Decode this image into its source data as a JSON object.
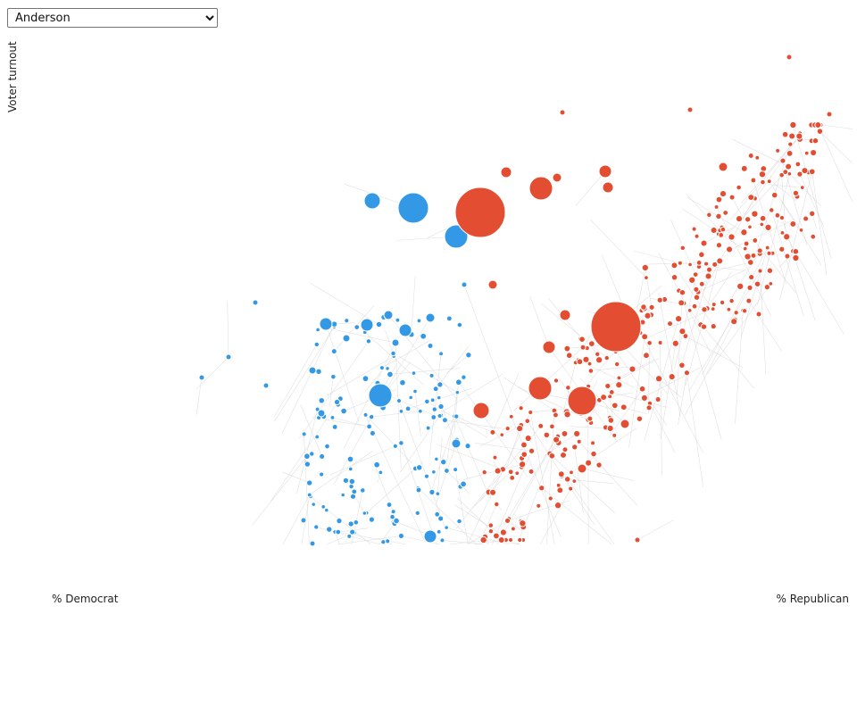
{
  "controls": {
    "county_options": [
      "Anderson"
    ],
    "selected_county": "Anderson"
  },
  "colors": {
    "democrat": "#3399e6",
    "republican": "#e34e33",
    "link": "#d4d4d4"
  },
  "chart_data": {
    "type": "scatter",
    "title": "",
    "xlabel_left": "% Democrat",
    "xlabel_right": "% Republican",
    "ylabel": "Voter turnout",
    "grid": false,
    "legend": "none",
    "points": [
      [
        538,
        238,
        28,
        "R"
      ],
      [
        690,
        366,
        28,
        "R"
      ],
      [
        463,
        233,
        17,
        "B"
      ],
      [
        652,
        449,
        16,
        "R"
      ],
      [
        511,
        265,
        13,
        "B"
      ],
      [
        426,
        443,
        13,
        "B"
      ],
      [
        606,
        211,
        13,
        "R"
      ],
      [
        605,
        435,
        13,
        "R"
      ],
      [
        417,
        225,
        9,
        "B"
      ],
      [
        539,
        460,
        9,
        "R"
      ],
      [
        678,
        192,
        7,
        "R"
      ],
      [
        567,
        193,
        6,
        "R"
      ],
      [
        681,
        210,
        6,
        "R"
      ],
      [
        615,
        389,
        7,
        "R"
      ],
      [
        633,
        353,
        6,
        "R"
      ],
      [
        454,
        370,
        7,
        "B"
      ],
      [
        411,
        364,
        7,
        "B"
      ],
      [
        365,
        363,
        7,
        "B"
      ],
      [
        482,
        601,
        7,
        "B"
      ],
      [
        624,
        199,
        5,
        "R"
      ],
      [
        810,
        187,
        5,
        "R"
      ],
      [
        552,
        319,
        5,
        "R"
      ],
      [
        700,
        475,
        5,
        "R"
      ],
      [
        652,
        525,
        5,
        "R"
      ],
      [
        511,
        497,
        5,
        "B"
      ],
      [
        435,
        353,
        5,
        "B"
      ],
      [
        482,
        356,
        5,
        "B"
      ],
      [
        360,
        463,
        4,
        "B"
      ],
      [
        388,
        379,
        4,
        "B"
      ],
      [
        350,
        415,
        4,
        "B"
      ],
      [
        443,
        384,
        4,
        "B"
      ],
      [
        714,
        605,
        3,
        "R"
      ],
      [
        884,
        64,
        3,
        "R"
      ],
      [
        630,
        126,
        3,
        "R"
      ],
      [
        773,
        123,
        3,
        "R"
      ],
      [
        929,
        128,
        3,
        "R"
      ],
      [
        909,
        139,
        3,
        "R"
      ],
      [
        850,
        352,
        3,
        "R"
      ],
      [
        226,
        423,
        3,
        "B"
      ],
      [
        256,
        400,
        3,
        "B"
      ],
      [
        286,
        339,
        3,
        "B"
      ],
      [
        298,
        432,
        3,
        "B"
      ],
      [
        350,
        609,
        3,
        "B"
      ],
      [
        340,
        583,
        3,
        "B"
      ],
      [
        520,
        319,
        3,
        "B"
      ]
    ]
  }
}
